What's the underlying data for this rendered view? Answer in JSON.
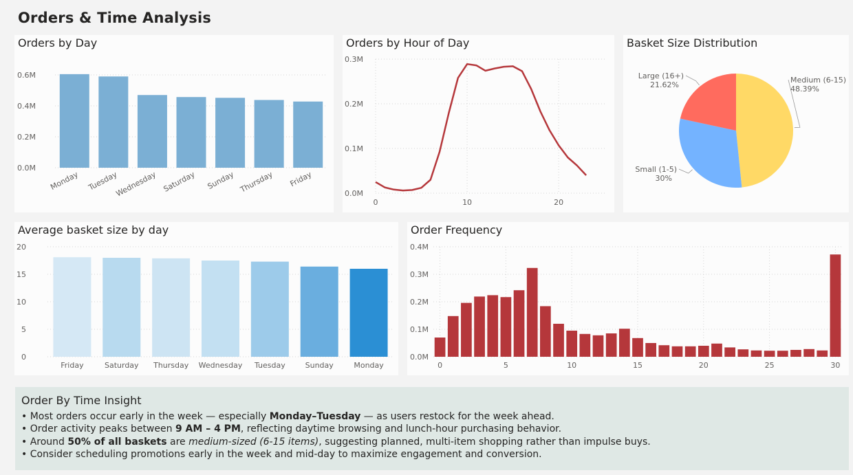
{
  "page": {
    "title": "Orders & Time Analysis"
  },
  "cards": {
    "orders_by_day": "Orders by Day",
    "orders_by_hour": "Orders by Hour of Day",
    "basket_size": "Basket Size Distribution",
    "avg_basket": "Average basket size by day",
    "order_frequency": "Order Frequency"
  },
  "colors": {
    "bar_blue": "#7bafd4",
    "line_red": "#b5373b",
    "freq_red": "#b5373b",
    "pie_medium": "#ffd966",
    "pie_small": "#74b3ff",
    "pie_large": "#ff6b5e",
    "insight_bg": "#dfe8e5"
  },
  "chart_data": [
    {
      "id": "orders_by_day",
      "type": "bar",
      "categories": [
        "Monday",
        "Tuesday",
        "Wednesday",
        "Saturday",
        "Sunday",
        "Thursday",
        "Friday"
      ],
      "values": [
        0.605,
        0.59,
        0.47,
        0.457,
        0.452,
        0.438,
        0.428
      ],
      "ylim": [
        0,
        0.6
      ],
      "yticks": [
        "0.0M",
        "0.2M",
        "0.4M",
        "0.6M"
      ],
      "grid": true
    },
    {
      "id": "orders_by_hour",
      "type": "line",
      "x": [
        0,
        1,
        2,
        3,
        4,
        5,
        6,
        7,
        8,
        9,
        10,
        11,
        12,
        13,
        14,
        15,
        16,
        17,
        18,
        19,
        20,
        21,
        22,
        23
      ],
      "values": [
        0.025,
        0.013,
        0.008,
        0.006,
        0.007,
        0.012,
        0.03,
        0.093,
        0.18,
        0.258,
        0.289,
        0.286,
        0.274,
        0.279,
        0.283,
        0.284,
        0.273,
        0.233,
        0.183,
        0.141,
        0.107,
        0.08,
        0.062,
        0.04
      ],
      "ylim": [
        0,
        0.3
      ],
      "yticks": [
        "0.0M",
        "0.1M",
        "0.2M",
        "0.3M"
      ],
      "xticks": [
        "0",
        "10",
        "20"
      ],
      "grid": true
    },
    {
      "id": "basket_size",
      "type": "pie",
      "slices": [
        {
          "label": "Medium (6-15)",
          "value": 48.39,
          "pct": "48.39%"
        },
        {
          "label": "Small (1-5)",
          "value": 30,
          "pct": "30%"
        },
        {
          "label": "Large (16+)",
          "value": 21.62,
          "pct": "21.62%"
        }
      ]
    },
    {
      "id": "avg_basket",
      "type": "bar",
      "categories": [
        "Friday",
        "Saturday",
        "Thursday",
        "Wednesday",
        "Tuesday",
        "Sunday",
        "Monday"
      ],
      "values": [
        18.1,
        18.0,
        17.9,
        17.5,
        17.3,
        16.4,
        16.0
      ],
      "ylim": [
        0,
        20
      ],
      "yticks": [
        "0",
        "5",
        "10",
        "15",
        "20"
      ],
      "colors": [
        "#d5e8f5",
        "#b8daef",
        "#cde4f3",
        "#c3e0f2",
        "#9dcbea",
        "#6aaedf",
        "#2b8fd4"
      ],
      "grid": true
    },
    {
      "id": "order_frequency",
      "type": "bar",
      "x": [
        0,
        1,
        2,
        3,
        4,
        5,
        6,
        7,
        8,
        9,
        10,
        11,
        12,
        13,
        14,
        15,
        16,
        17,
        18,
        19,
        20,
        21,
        22,
        23,
        24,
        25,
        26,
        27,
        28,
        29,
        30
      ],
      "values": [
        0.07,
        0.148,
        0.196,
        0.219,
        0.224,
        0.217,
        0.242,
        0.323,
        0.184,
        0.12,
        0.095,
        0.083,
        0.078,
        0.085,
        0.102,
        0.068,
        0.05,
        0.042,
        0.038,
        0.038,
        0.04,
        0.048,
        0.034,
        0.027,
        0.023,
        0.022,
        0.022,
        0.025,
        0.028,
        0.023,
        0.372
      ],
      "ylim": [
        0,
        0.4
      ],
      "yticks": [
        "0.0M",
        "0.1M",
        "0.2M",
        "0.3M",
        "0.4M"
      ],
      "xticks": [
        "0",
        "5",
        "10",
        "15",
        "20",
        "25",
        "30"
      ],
      "grid": true
    }
  ],
  "insight": {
    "title": "Order By Time Insight",
    "items": [
      {
        "parts": [
          {
            "t": "Most orders occur early in the week — especially "
          },
          {
            "t": "Monday–Tuesday",
            "s": "b"
          },
          {
            "t": " — as users restock for the week ahead."
          }
        ]
      },
      {
        "parts": [
          {
            "t": "Order activity peaks between "
          },
          {
            "t": "9 AM – 4 PM",
            "s": "b"
          },
          {
            "t": ", reflecting daytime browsing and lunch-hour purchasing behavior."
          }
        ]
      },
      {
        "parts": [
          {
            "t": "Around "
          },
          {
            "t": "50% of all baskets",
            "s": "b"
          },
          {
            "t": " are "
          },
          {
            "t": "medium-sized (6-15 items)",
            "s": "i"
          },
          {
            "t": ", suggesting planned, multi-item shopping rather than impulse buys."
          }
        ]
      },
      {
        "parts": [
          {
            "t": "Consider scheduling promotions early in the week and mid-day to maximize engagement and conversion."
          }
        ]
      }
    ]
  }
}
